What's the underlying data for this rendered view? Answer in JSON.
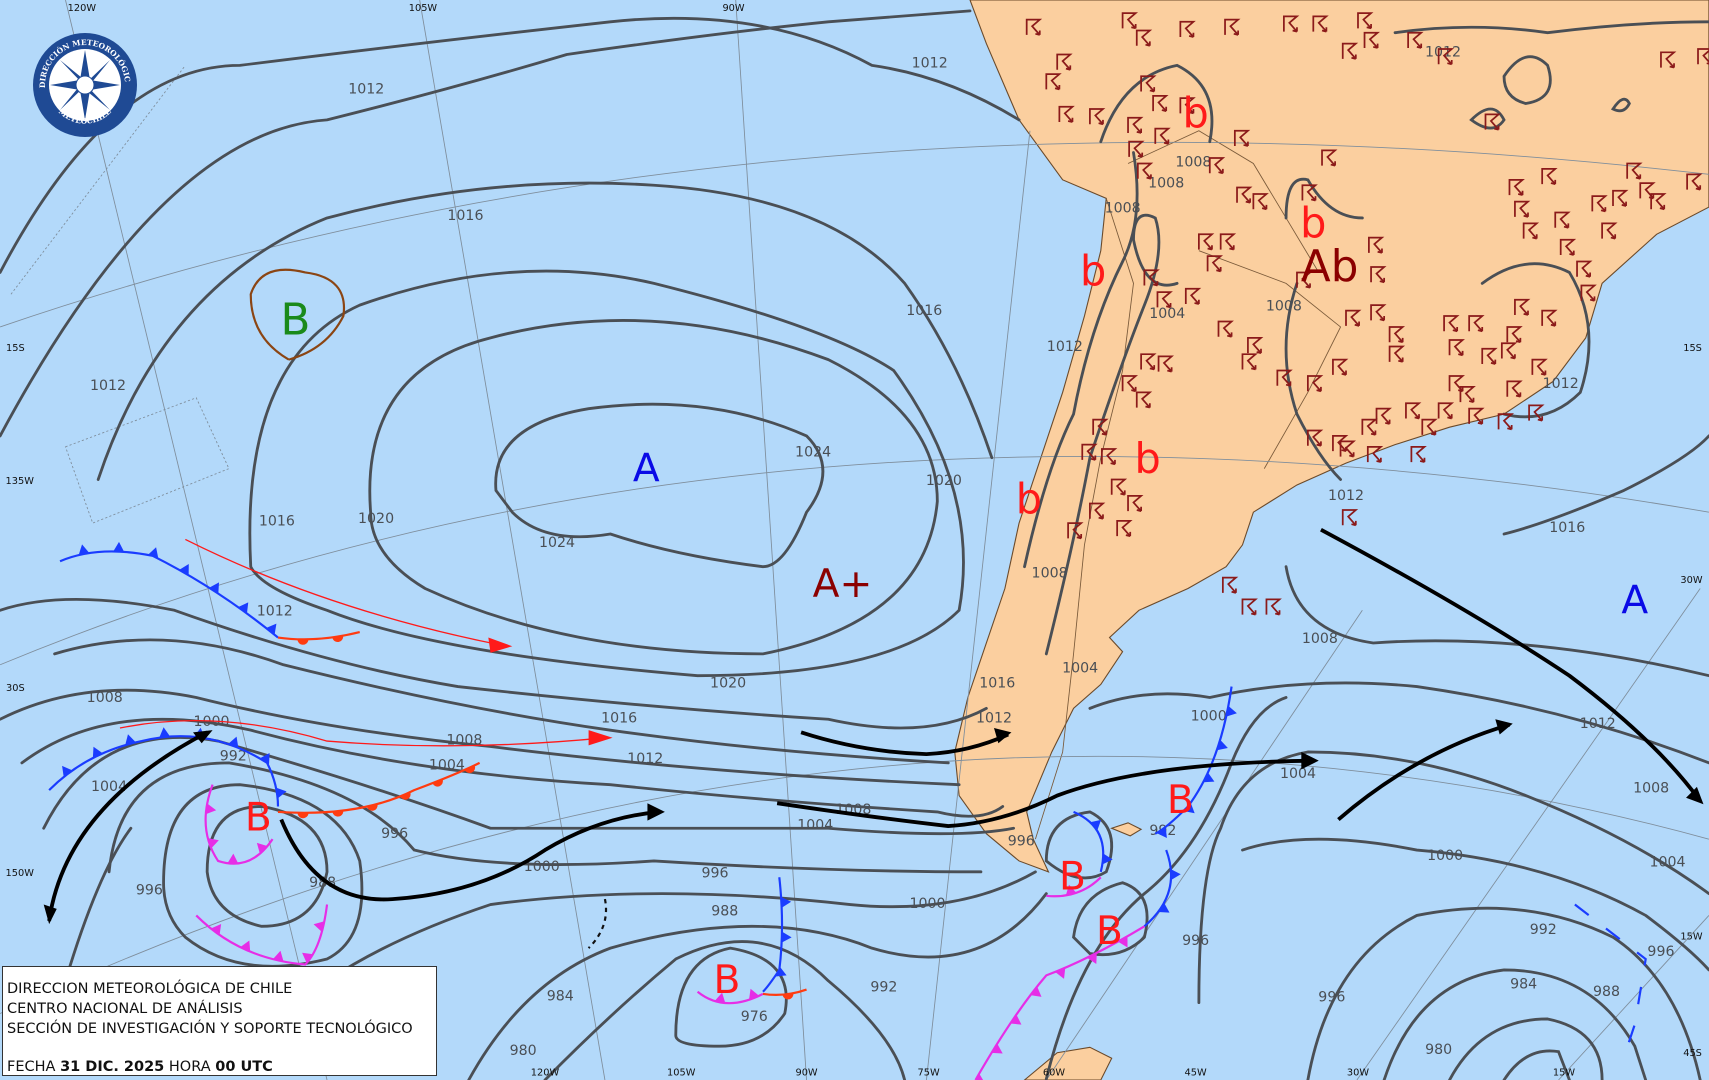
{
  "colors": {
    "ocean": "#b3d9fa",
    "land": "#fbcf9f",
    "isobar": "#4a4f55",
    "high": "#0a0ae6",
    "low": "#ff1a1a",
    "strong_high": "#8b0000",
    "cold_front": "#1a3cff",
    "warm_front": "#ff3b10",
    "occluded_front": "#e62ee6",
    "trough": "#8b4513",
    "wind_symbol": "#8b1a1a",
    "logo": "#1f4a94"
  },
  "logo": {
    "top_text": "DIRECCIÓN METEOROLÓGICA",
    "bottom_text": "METEOCHILE",
    "icon": "compass-rose-icon"
  },
  "info_box": {
    "line1": "DIRECCION METEOROLÓGICA DE CHILE",
    "line2": "CENTRO NACIONAL DE ANÁLISIS",
    "line3": "SECCIÓN DE INVESTIGACIÓN Y SOPORTE TECNOLÓGICO",
    "date_label": "FECHA",
    "date_value": "31 DIC. 2025",
    "time_label": "HORA",
    "time_value": "00 UTC"
  },
  "grid_labels": [
    "120W",
    "105W",
    "90W",
    "15S",
    "135W",
    "30S",
    "150W",
    "120W",
    "105W",
    "90W",
    "75W",
    "60W",
    "45W",
    "30W",
    "15W",
    "15S",
    "30W",
    "15W",
    "45S"
  ],
  "pressure_centers": [
    {
      "label": "B",
      "type": "low-trough"
    },
    {
      "label": "A",
      "type": "high"
    },
    {
      "label": "A+",
      "type": "strong-high"
    },
    {
      "label": "b",
      "type": "weak-low"
    },
    {
      "label": "b",
      "type": "weak-low"
    },
    {
      "label": "b",
      "type": "weak-low"
    },
    {
      "label": "b",
      "type": "weak-low"
    },
    {
      "label": "b",
      "type": "weak-low"
    },
    {
      "label": "Ab",
      "type": "strong-weak-low"
    },
    {
      "label": "A",
      "type": "high"
    },
    {
      "label": "B",
      "type": "low"
    },
    {
      "label": "B",
      "type": "low"
    },
    {
      "label": "B",
      "type": "low"
    },
    {
      "label": "B",
      "type": "low"
    },
    {
      "label": "B",
      "type": "low"
    }
  ],
  "isobar_labels": [
    "1012",
    "1012",
    "1016",
    "1016",
    "1012",
    "1024",
    "1020",
    "1020",
    "1016",
    "1024",
    "1012",
    "1008",
    "1020",
    "1016",
    "1000",
    "1008",
    "1012",
    "992",
    "1004",
    "1004",
    "1008",
    "1004",
    "996",
    "1000",
    "996",
    "988",
    "996",
    "1000",
    "988",
    "992",
    "984",
    "976",
    "980",
    "1008",
    "1008",
    "1008",
    "1004",
    "1012",
    "1008",
    "1012",
    "1012",
    "1012",
    "1016",
    "1008",
    "1004",
    "1008",
    "1000",
    "1004",
    "1012",
    "1008",
    "1000",
    "1004",
    "992",
    "996",
    "992",
    "996",
    "996",
    "984",
    "988",
    "980",
    "996",
    "1012",
    "1016"
  ]
}
